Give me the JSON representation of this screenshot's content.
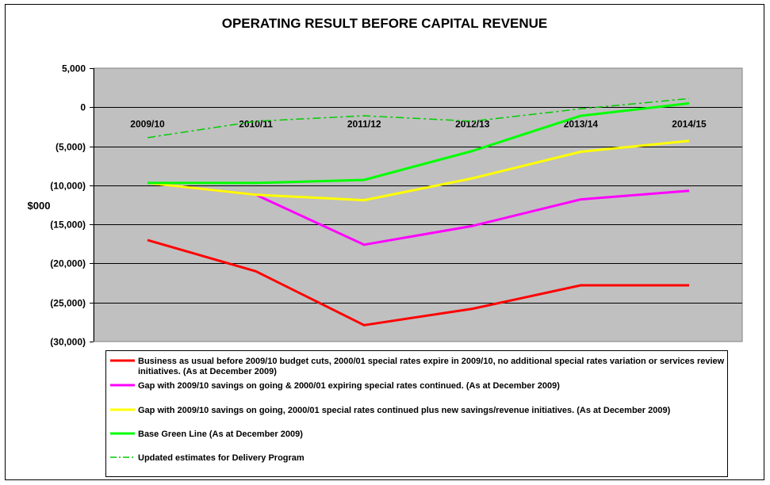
{
  "chart_data": {
    "type": "line",
    "title": "OPERATING RESULT BEFORE CAPITAL REVENUE",
    "ylabel": "$000",
    "ylim": [
      -30000,
      5000
    ],
    "ytick_values": [
      5000,
      0,
      -5000,
      -10000,
      -15000,
      -20000,
      -25000,
      -30000
    ],
    "ytick_labels": [
      "5,000",
      "0",
      "(5,000)",
      "(10,000)",
      "(15,000)",
      "(20,000)",
      "(25,000)",
      "(30,000)"
    ],
    "categories": [
      "2009/10",
      "2010/11",
      "2011/12",
      "2012/13",
      "2013/14",
      "2014/15"
    ],
    "grid": true,
    "legend_position": "bottom",
    "colors": {
      "plot_background": "#c0c0c0",
      "gridline": "#000000"
    },
    "series": [
      {
        "name": "Business as usual before 2009/10 budget cuts, 2000/01 special rates expire in 2009/10, no additional special rates variation or services review initiatives. (As at December 2009)",
        "color": "#ff0000",
        "dash": "solid",
        "values": [
          -17000,
          -21000,
          -27900,
          -25800,
          -22800,
          -22800
        ]
      },
      {
        "name": "Gap with 2009/10 savings on going & 2000/01 expiring special rates continued. (As at December 2009)",
        "color": "#ff00ff",
        "dash": "solid",
        "values": [
          -9700,
          -11200,
          -17600,
          -15200,
          -11800,
          -10700
        ]
      },
      {
        "name": "Gap with 2009/10 savings on going, 2000/01 special rates continued plus new savings/revenue initiatives. (As at December 2009)",
        "color": "#ffff00",
        "dash": "solid",
        "values": [
          -9700,
          -11200,
          -11900,
          -9100,
          -5700,
          -4300
        ]
      },
      {
        "name": "Base Green Line (As at December 2009)",
        "color": "#00ff00",
        "dash": "solid",
        "values": [
          -9700,
          -9700,
          -9300,
          -5600,
          -1100,
          500
        ]
      },
      {
        "name": "Updated estimates for Delivery Program",
        "color": "#00cc00",
        "dash": "dashdot",
        "values": [
          -3900,
          -1800,
          -1100,
          -1800,
          -200,
          1100
        ]
      }
    ]
  }
}
